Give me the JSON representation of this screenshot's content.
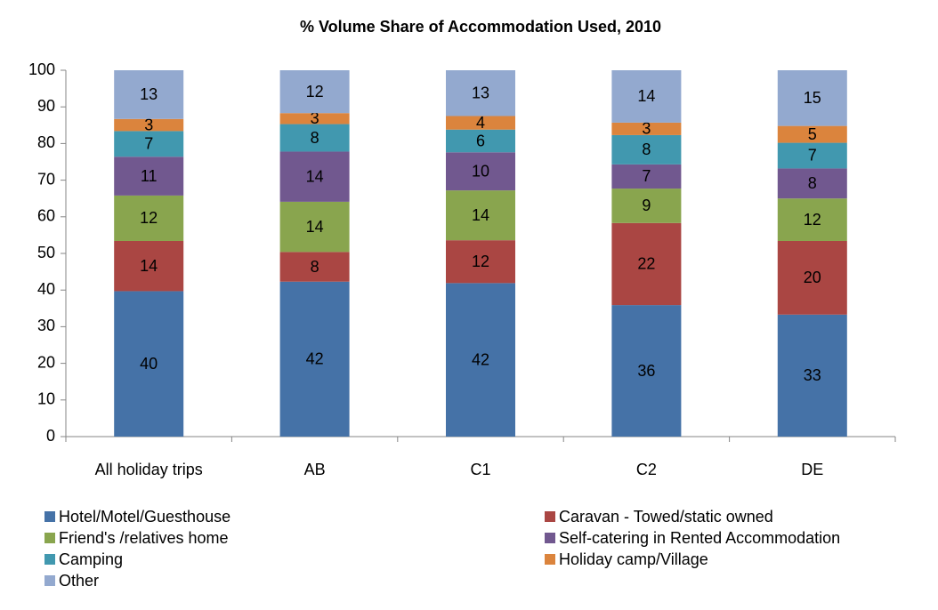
{
  "chart_data": {
    "type": "stacked_bar",
    "title": "% Volume Share of Accommodation Used, 2010",
    "categories": [
      "All holiday trips",
      "AB",
      "C1",
      "C2",
      "DE"
    ],
    "series": [
      {
        "name": "Hotel/Motel/Guesthouse",
        "color": "#4572a7",
        "values": [
          39.7,
          42.3,
          41.9,
          35.9,
          33.3
        ],
        "value_labels": [
          "40",
          "42",
          "42",
          "36",
          "33"
        ]
      },
      {
        "name": "Caravan - Towed/static owned",
        "color": "#aa4643",
        "values": [
          13.7,
          8.1,
          11.7,
          22.4,
          20.1
        ],
        "value_labels": [
          "14",
          "8",
          "12",
          "22",
          "20"
        ]
      },
      {
        "name": "Friend's /relatives home",
        "color": "#89a54e",
        "values": [
          12.4,
          13.7,
          13.6,
          9.4,
          11.6
        ],
        "value_labels": [
          "12",
          "14",
          "14",
          "9",
          "12"
        ]
      },
      {
        "name": "Self-catering in Rented Accommodation",
        "color": "#71588f",
        "values": [
          10.6,
          13.7,
          10.4,
          6.6,
          8.2
        ],
        "value_labels": [
          "11",
          "14",
          "10",
          "7",
          "8"
        ]
      },
      {
        "name": "Camping",
        "color": "#4198af",
        "values": [
          7.0,
          7.5,
          6.2,
          8.0,
          7.0
        ],
        "value_labels": [
          "7",
          "8",
          "6",
          "8",
          "7"
        ]
      },
      {
        "name": "Holiday camp/Village",
        "color": "#db843d",
        "values": [
          3.3,
          3.0,
          3.7,
          3.4,
          4.6
        ],
        "value_labels": [
          "3",
          "3",
          "4",
          "3",
          "5"
        ]
      },
      {
        "name": "Other",
        "color": "#93a9cf",
        "values": [
          13.3,
          11.7,
          12.5,
          14.3,
          15.2
        ],
        "value_labels": [
          "13",
          "12",
          "13",
          "14",
          "15"
        ]
      }
    ],
    "ylim": [
      0,
      100
    ],
    "yticks": [
      0,
      10,
      20,
      30,
      40,
      50,
      60,
      70,
      80,
      90,
      100
    ],
    "grid": false
  }
}
